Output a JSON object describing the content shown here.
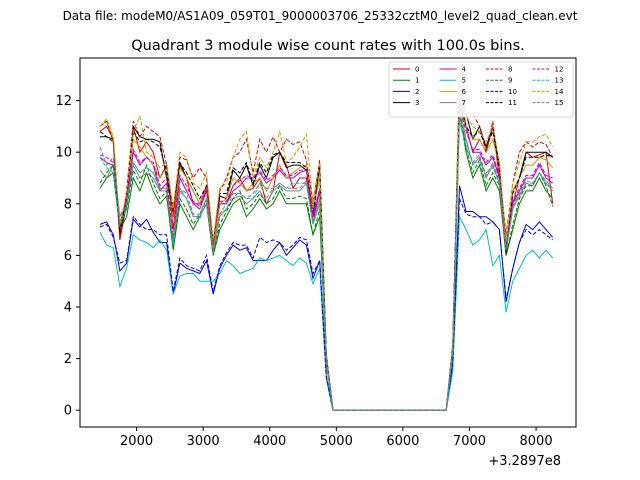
{
  "suptitle": "Data file: modeM0/AS1A09_059T01_9000003706_25332cztM0_level2_quad_clean.evt",
  "chart_data": {
    "type": "line",
    "title": "Quadrant 3 module wise count rates with 100.0s bins.",
    "xlabel": "",
    "ylabel": "",
    "x_offset_label": "+3.2897e8",
    "xlim": [
      1150,
      8600
    ],
    "ylim": [
      -0.65,
      13.65
    ],
    "xticks": [
      2000,
      3000,
      4000,
      5000,
      6000,
      7000,
      8000
    ],
    "yticks": [
      0,
      2,
      4,
      6,
      8,
      10,
      12
    ],
    "legend_position": "top-right",
    "x": [
      1450,
      1550,
      1650,
      1750,
      1850,
      1950,
      2050,
      2150,
      2250,
      2350,
      2450,
      2550,
      2650,
      2750,
      2850,
      2950,
      3050,
      3150,
      3250,
      3350,
      3450,
      3550,
      3650,
      3750,
      3850,
      3950,
      4050,
      4150,
      4250,
      4350,
      4450,
      4550,
      4650,
      4750,
      4850,
      4950,
      6650,
      6750,
      6850,
      6950,
      7050,
      7150,
      7250,
      7350,
      7450,
      7550,
      7650,
      7750,
      7850,
      7950,
      8050,
      8150,
      8250
    ],
    "series": [
      {
        "name": "0",
        "color": "#e00000",
        "dash": "solid",
        "values": [
          10.8,
          11.0,
          10.5,
          6.6,
          8.0,
          11.0,
          10.0,
          10.4,
          10.0,
          9.0,
          9.5,
          7.0,
          9.5,
          9.0,
          8.0,
          8.0,
          8.7,
          6.2,
          8.0,
          8.0,
          8.7,
          9.0,
          8.5,
          8.6,
          9.0,
          8.0,
          8.5,
          10.0,
          9.5,
          8.6,
          9.0,
          9.0,
          7.3,
          8.5,
          2.0,
          0.0,
          0.0,
          2.5,
          12.5,
          11.0,
          10.0,
          10.5,
          10.0,
          11.0,
          9.0,
          6.5,
          8.0,
          9.0,
          10.0,
          9.8,
          9.9,
          10.0,
          8.0
        ]
      },
      {
        "name": "1",
        "color": "#008000",
        "dash": "solid",
        "values": [
          8.6,
          9.0,
          9.2,
          7.0,
          7.5,
          9.0,
          8.5,
          9.2,
          8.5,
          8.0,
          8.3,
          6.2,
          8.0,
          7.5,
          7.0,
          7.5,
          8.0,
          6.0,
          7.0,
          7.5,
          8.0,
          8.2,
          7.5,
          7.8,
          8.2,
          7.8,
          8.0,
          8.5,
          8.0,
          8.0,
          8.0,
          8.0,
          6.8,
          7.5,
          1.8,
          0.0,
          0.0,
          2.2,
          11.5,
          10.0,
          9.0,
          9.5,
          8.5,
          9.0,
          8.5,
          6.0,
          7.0,
          8.0,
          8.5,
          8.5,
          9.0,
          8.5,
          8.2
        ]
      },
      {
        "name": "2",
        "color": "#0000e0",
        "dash": "solid",
        "values": [
          7.2,
          7.3,
          6.8,
          5.4,
          5.7,
          7.4,
          7.1,
          7.4,
          6.9,
          6.5,
          6.5,
          4.5,
          5.7,
          5.5,
          5.4,
          5.3,
          5.8,
          4.5,
          5.5,
          6.0,
          6.4,
          6.2,
          6.3,
          5.8,
          5.8,
          5.8,
          6.2,
          6.5,
          6.0,
          6.3,
          6.6,
          6.4,
          5.1,
          5.8,
          1.3,
          0.0,
          0.0,
          1.8,
          8.7,
          7.7,
          7.7,
          7.5,
          7.5,
          7.3,
          7.0,
          4.2,
          5.5,
          6.5,
          7.2,
          7.0,
          7.3,
          7.0,
          6.7
        ]
      },
      {
        "name": "3",
        "color": "#000000",
        "dash": "solid",
        "values": [
          10.6,
          10.6,
          10.5,
          6.8,
          8.0,
          11.0,
          10.6,
          10.5,
          10.5,
          10.4,
          9.0,
          7.7,
          9.6,
          9.0,
          8.5,
          8.0,
          8.5,
          6.5,
          8.3,
          8.2,
          9.3,
          9.0,
          9.5,
          8.7,
          9.5,
          9.0,
          9.8,
          10.0,
          9.4,
          9.5,
          9.5,
          9.3,
          7.5,
          9.5,
          2.1,
          0.0,
          0.0,
          2.5,
          12.5,
          11.5,
          10.5,
          11.0,
          10.2,
          11.0,
          9.5,
          6.0,
          8.5,
          9.0,
          10.0,
          10.0,
          10.0,
          10.0,
          9.8
        ]
      },
      {
        "name": "4",
        "color": "#c000c0",
        "dash": "solid",
        "values": [
          9.8,
          9.6,
          9.5,
          7.3,
          8.0,
          10.0,
          9.5,
          9.8,
          9.5,
          8.5,
          8.8,
          6.5,
          9.0,
          8.5,
          8.0,
          7.8,
          8.5,
          6.5,
          8.0,
          8.0,
          8.5,
          8.7,
          9.0,
          9.0,
          9.2,
          8.8,
          9.0,
          9.3,
          9.0,
          9.0,
          9.2,
          9.3,
          7.5,
          8.5,
          2.0,
          0.0,
          0.0,
          2.4,
          12.0,
          11.0,
          10.0,
          10.0,
          9.5,
          9.8,
          9.0,
          6.3,
          8.0,
          8.5,
          9.0,
          9.0,
          9.5,
          9.0,
          8.8
        ]
      },
      {
        "name": "5",
        "color": "#00c0c0",
        "dash": "solid",
        "values": [
          6.9,
          6.4,
          6.3,
          4.8,
          5.5,
          6.8,
          6.6,
          6.5,
          6.3,
          6.6,
          6.2,
          4.5,
          5.2,
          5.3,
          5.3,
          5.0,
          5.0,
          5.0,
          5.3,
          5.8,
          5.6,
          5.3,
          5.4,
          5.5,
          5.9,
          5.8,
          5.9,
          6.0,
          5.8,
          5.6,
          5.9,
          5.7,
          4.9,
          5.5,
          1.2,
          0.0,
          0.0,
          1.5,
          7.5,
          7.0,
          6.4,
          6.6,
          7.0,
          5.6,
          6.0,
          3.8,
          5.0,
          5.5,
          6.0,
          6.2,
          5.9,
          6.2,
          5.9
        ]
      },
      {
        "name": "6",
        "color": "#c0a000",
        "dash": "solid",
        "values": [
          11.0,
          11.2,
          10.5,
          7.0,
          8.2,
          10.5,
          10.2,
          9.8,
          9.5,
          9.0,
          9.4,
          7.5,
          9.4,
          9.0,
          8.5,
          8.0,
          8.6,
          6.3,
          8.0,
          8.2,
          9.0,
          8.8,
          8.5,
          8.8,
          9.0,
          8.5,
          9.0,
          9.5,
          9.0,
          9.2,
          9.4,
          9.5,
          7.8,
          9.0,
          2.0,
          0.0,
          0.0,
          2.5,
          12.8,
          11.0,
          10.5,
          10.5,
          10.0,
          10.5,
          9.5,
          6.4,
          8.5,
          9.0,
          9.5,
          9.5,
          9.8,
          9.7,
          9.4
        ]
      },
      {
        "name": "7",
        "color": "#808080",
        "dash": "solid",
        "values": [
          9.3,
          9.0,
          9.5,
          7.0,
          8.0,
          9.5,
          9.0,
          9.2,
          9.0,
          8.5,
          8.5,
          6.5,
          8.5,
          8.2,
          7.5,
          7.5,
          8.0,
          6.0,
          7.5,
          7.8,
          8.2,
          8.3,
          8.0,
          8.2,
          8.5,
          8.0,
          8.5,
          8.7,
          8.5,
          8.5,
          8.5,
          8.8,
          7.2,
          8.0,
          1.9,
          0.0,
          0.0,
          2.3,
          11.8,
          10.5,
          9.5,
          9.8,
          9.0,
          9.5,
          8.8,
          6.2,
          7.8,
          8.3,
          8.8,
          8.7,
          9.2,
          8.8,
          8.5
        ]
      },
      {
        "name": "8",
        "color": "#e00000",
        "dash": "dashed",
        "values": [
          11.0,
          11.2,
          10.4,
          6.6,
          8.5,
          11.2,
          10.6,
          11.0,
          10.8,
          10.6,
          9.5,
          7.5,
          9.8,
          9.7,
          9.0,
          9.4,
          9.0,
          6.4,
          8.5,
          9.0,
          9.8,
          10.0,
          10.5,
          9.2,
          10.5,
          10.0,
          10.6,
          10.0,
          10.5,
          10.3,
          10.4,
          9.7,
          8.0,
          9.7,
          2.2,
          0.0,
          0.0,
          2.6,
          13.0,
          11.5,
          11.5,
          11.0,
          10.0,
          11.2,
          9.2,
          6.8,
          8.8,
          10.0,
          10.4,
          10.2,
          10.4,
          10.3,
          9.8
        ]
      },
      {
        "name": "9",
        "color": "#008000",
        "dash": "dashed",
        "values": [
          8.8,
          9.2,
          9.5,
          7.1,
          7.8,
          9.3,
          8.8,
          9.5,
          8.8,
          8.2,
          8.5,
          6.3,
          8.2,
          7.8,
          7.2,
          7.6,
          8.2,
          6.0,
          7.2,
          7.7,
          8.2,
          8.5,
          7.8,
          8.0,
          8.4,
          8.0,
          8.2,
          8.7,
          8.2,
          8.2,
          8.3,
          8.2,
          6.8,
          7.8,
          1.8,
          0.0,
          0.0,
          2.2,
          11.6,
          10.2,
          9.2,
          9.7,
          8.7,
          9.2,
          8.7,
          6.0,
          7.2,
          8.2,
          8.7,
          8.7,
          9.2,
          8.7,
          7.9
        ]
      },
      {
        "name": "10",
        "color": "#0000e0",
        "dash": "dashed",
        "values": [
          7.1,
          7.2,
          6.7,
          5.7,
          5.8,
          7.5,
          7.2,
          7.0,
          7.0,
          6.8,
          6.8,
          4.6,
          5.9,
          5.6,
          5.5,
          5.4,
          6.0,
          4.6,
          5.6,
          6.1,
          6.5,
          6.4,
          6.4,
          5.9,
          6.7,
          6.5,
          6.6,
          6.5,
          6.2,
          6.4,
          6.7,
          6.6,
          5.3,
          5.8,
          1.3,
          0.0,
          0.0,
          1.9,
          8.2,
          7.6,
          7.5,
          7.5,
          7.2,
          7.3,
          7.0,
          4.3,
          5.5,
          6.5,
          7.0,
          6.8,
          7.0,
          6.8,
          6.6
        ]
      },
      {
        "name": "11",
        "color": "#000000",
        "dash": "dashed",
        "values": [
          10.8,
          10.6,
          10.4,
          7.0,
          8.2,
          10.8,
          10.4,
          10.5,
          10.4,
          10.2,
          9.2,
          7.8,
          9.6,
          9.2,
          8.7,
          8.2,
          8.7,
          6.6,
          8.4,
          8.4,
          9.4,
          9.2,
          9.6,
          8.8,
          9.6,
          9.2,
          9.9,
          10.0,
          9.6,
          9.6,
          9.6,
          9.4,
          7.6,
          9.5,
          2.1,
          0.0,
          0.0,
          2.5,
          12.0,
          11.0,
          10.6,
          10.8,
          10.2,
          10.8,
          9.4,
          6.1,
          8.4,
          9.0,
          9.8,
          9.8,
          9.8,
          9.9,
          9.8
        ]
      },
      {
        "name": "12",
        "color": "#c000c0",
        "dash": "dashed",
        "values": [
          9.9,
          9.8,
          9.6,
          7.5,
          8.1,
          10.1,
          9.6,
          9.8,
          9.6,
          8.7,
          9.0,
          6.7,
          9.1,
          8.7,
          8.1,
          7.9,
          8.6,
          6.6,
          8.1,
          8.1,
          8.7,
          8.9,
          9.1,
          9.0,
          9.3,
          8.9,
          9.1,
          9.4,
          9.1,
          9.1,
          9.3,
          9.3,
          7.6,
          8.6,
          2.0,
          0.0,
          0.0,
          2.4,
          11.8,
          10.8,
          10.1,
          10.1,
          9.6,
          9.9,
          9.1,
          6.4,
          8.1,
          8.6,
          9.1,
          9.1,
          9.6,
          9.1,
          9.0
        ]
      },
      {
        "name": "13",
        "color": "#00c0c0",
        "dash": "dashed",
        "values": [
          9.8,
          9.4,
          9.2,
          7.2,
          7.8,
          9.6,
          9.2,
          9.4,
          9.2,
          8.6,
          8.6,
          6.4,
          8.6,
          8.2,
          7.6,
          7.4,
          8.2,
          6.2,
          7.6,
          7.8,
          8.4,
          8.4,
          8.2,
          8.2,
          8.8,
          8.6,
          8.6,
          8.8,
          8.6,
          8.8,
          8.8,
          8.8,
          7.2,
          8.2,
          1.9,
          0.0,
          0.0,
          2.3,
          11.2,
          10.2,
          9.6,
          9.6,
          9.2,
          9.4,
          8.8,
          6.2,
          7.8,
          8.4,
          8.8,
          8.8,
          9.2,
          8.8,
          8.6
        ]
      },
      {
        "name": "14",
        "color": "#c0a000",
        "dash": "dashed",
        "values": [
          11.0,
          11.3,
          10.6,
          7.2,
          8.4,
          10.8,
          11.4,
          10.0,
          9.8,
          9.4,
          9.6,
          7.8,
          10.0,
          9.8,
          8.8,
          8.6,
          9.2,
          6.6,
          8.6,
          8.8,
          9.8,
          10.5,
          10.8,
          9.0,
          9.8,
          9.4,
          10.0,
          10.8,
          9.6,
          9.8,
          10.2,
          10.7,
          8.0,
          9.6,
          2.1,
          0.0,
          0.0,
          2.6,
          12.4,
          11.4,
          11.0,
          10.8,
          10.4,
          11.0,
          9.6,
          6.6,
          8.8,
          9.6,
          10.4,
          10.4,
          10.6,
          10.7,
          10.2
        ]
      },
      {
        "name": "15",
        "color": "#808080",
        "dash": "dashed",
        "values": [
          10.2,
          9.5,
          9.8,
          7.5,
          8.0,
          9.6,
          9.2,
          9.4,
          9.2,
          8.6,
          8.6,
          6.6,
          8.6,
          8.4,
          7.6,
          7.6,
          8.2,
          6.2,
          7.6,
          8.0,
          8.4,
          8.4,
          8.2,
          8.4,
          8.8,
          8.2,
          8.6,
          8.8,
          8.6,
          8.6,
          8.6,
          8.9,
          7.3,
          8.2,
          1.9,
          0.0,
          0.0,
          2.3,
          11.4,
          10.4,
          9.6,
          9.9,
          9.1,
          9.6,
          8.9,
          6.2,
          7.9,
          8.4,
          8.9,
          8.8,
          9.2,
          8.9,
          8.6
        ]
      }
    ]
  }
}
